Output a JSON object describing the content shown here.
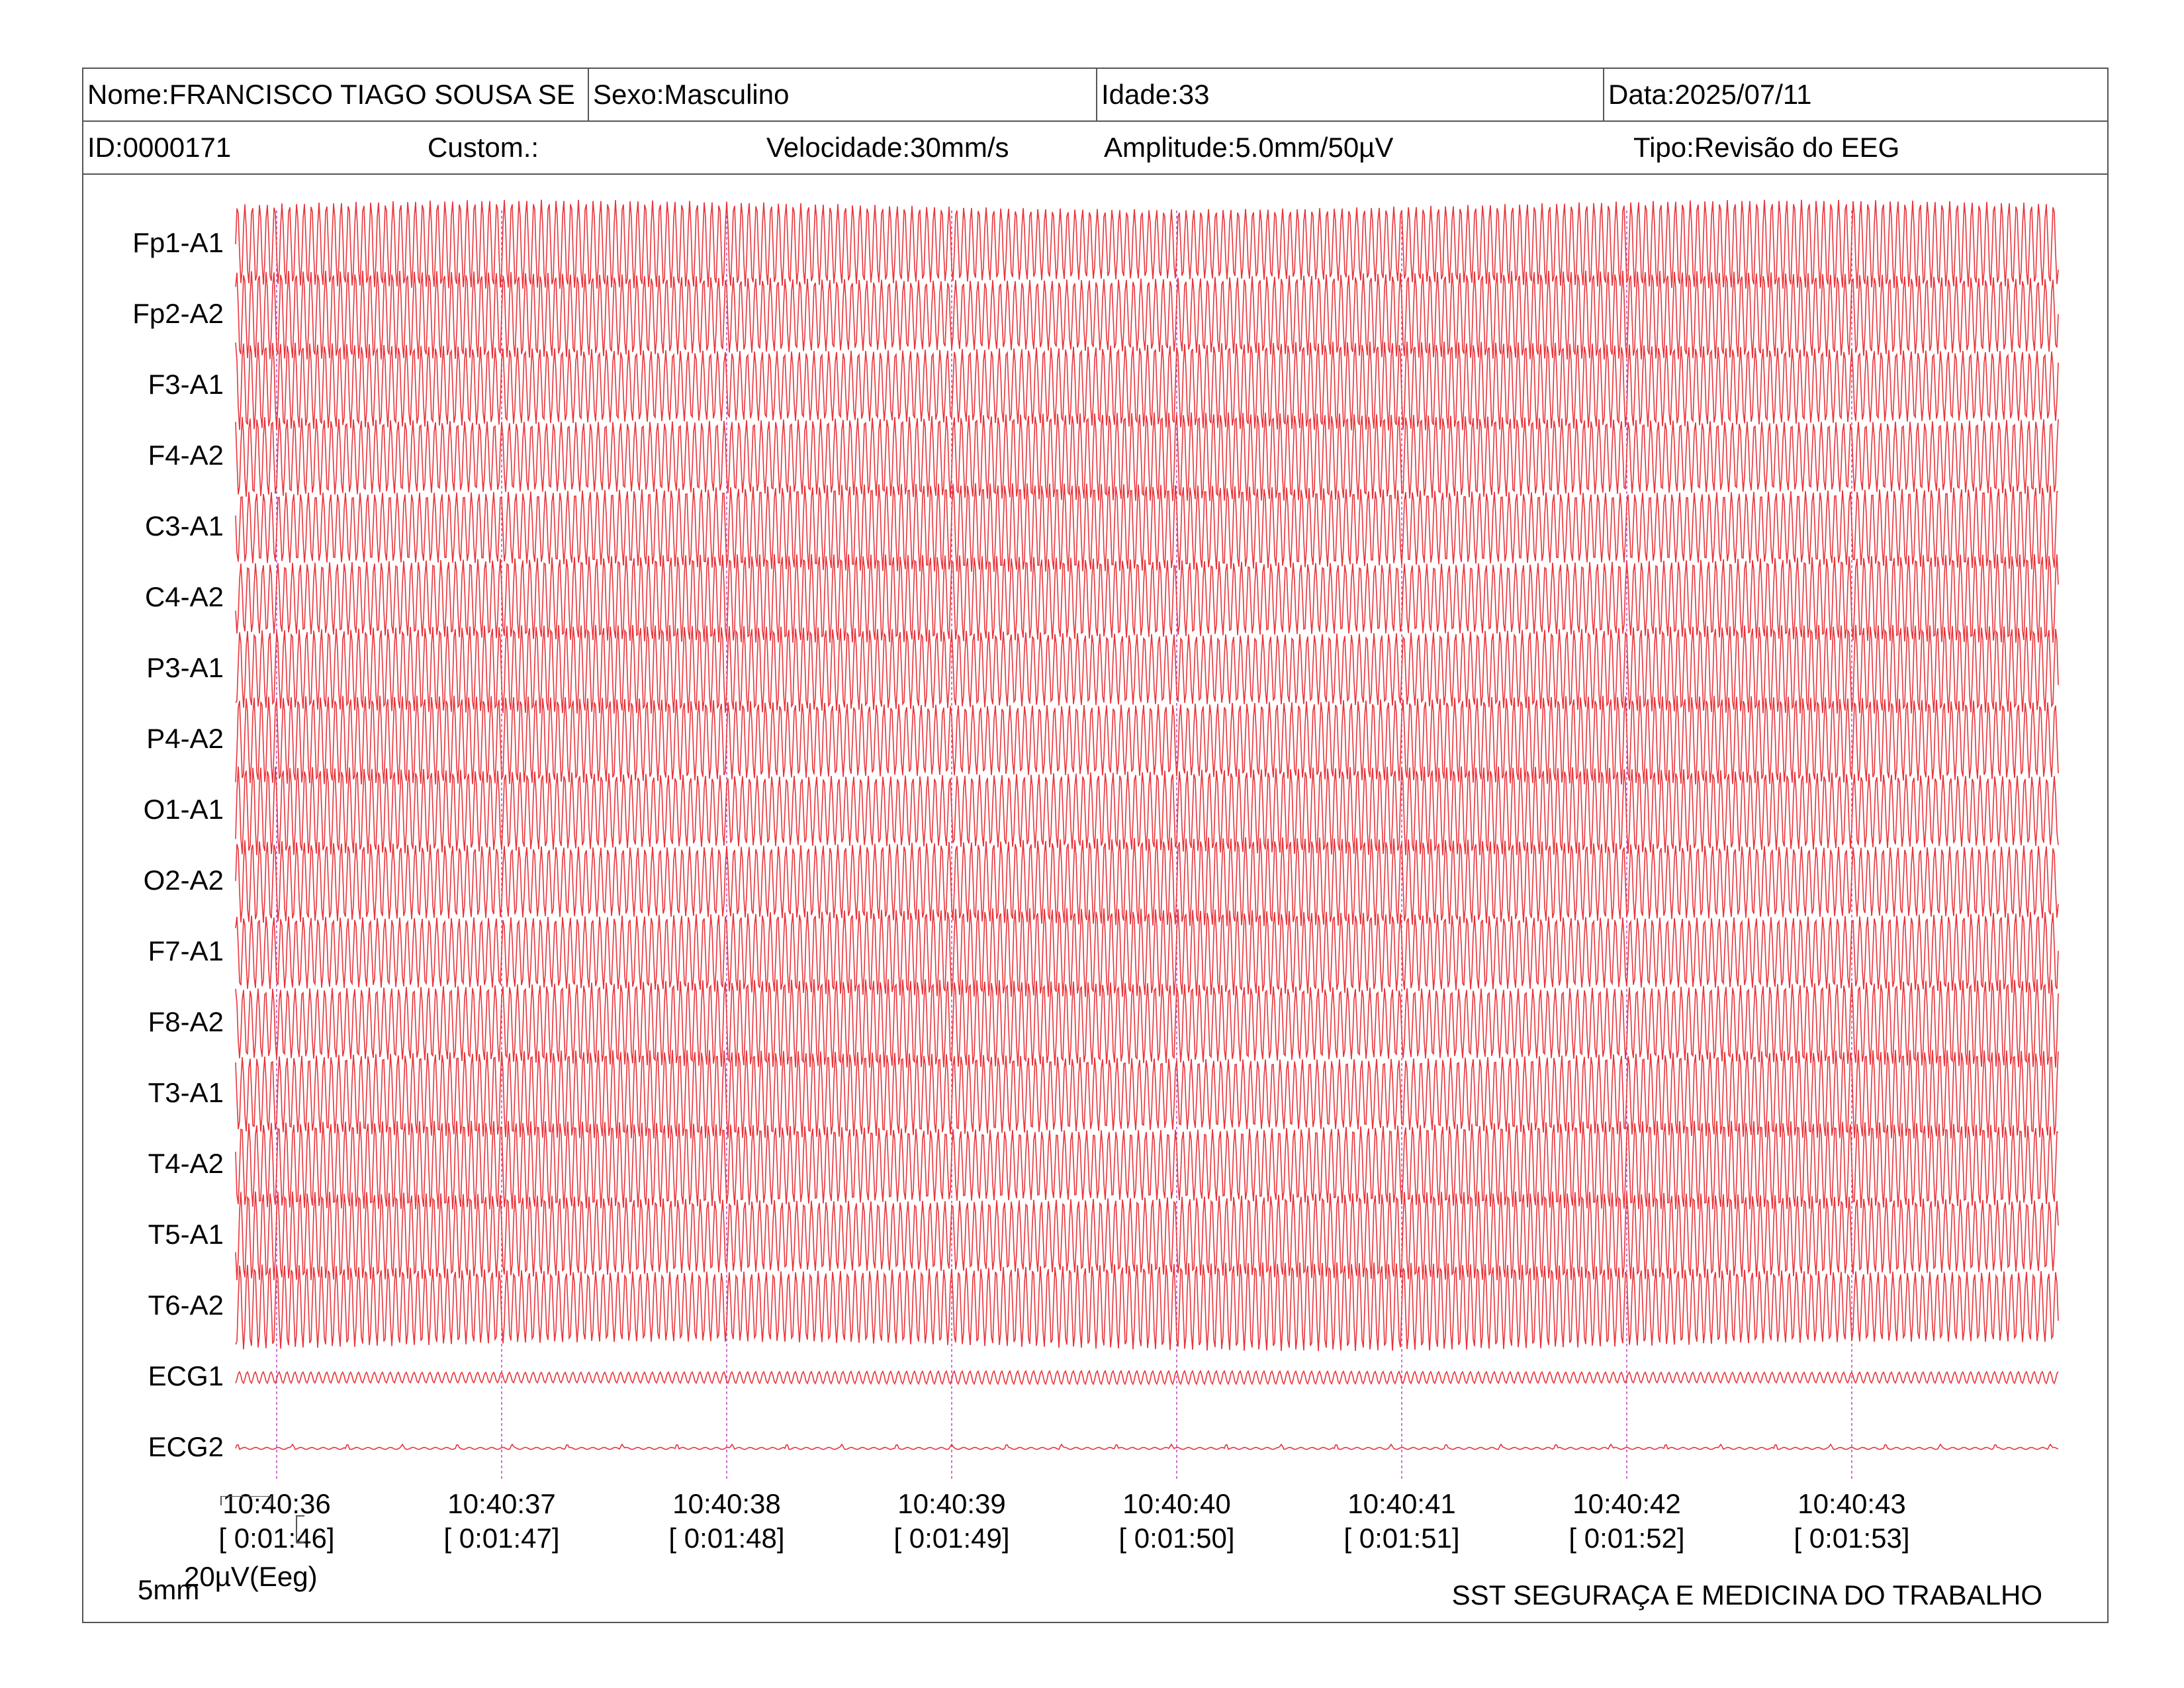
{
  "header": {
    "name": "Nome:FRANCISCO TIAGO SOUSA SE",
    "sex": "Sexo:Masculino",
    "age": "Idade:33",
    "date": "Data:2025/07/11",
    "id": "ID:0000171",
    "custom": "Custom.:",
    "speed": "Velocidade:30mm/s",
    "amplitude": "Amplitude:5.0mm/50µV",
    "type": "Tipo:Revisão do EEG"
  },
  "channels": [
    "Fp1-A1",
    "Fp2-A2",
    "F3-A1",
    "F4-A2",
    "C3-A1",
    "C4-A2",
    "P3-A1",
    "P4-A2",
    "O1-A1",
    "O2-A2",
    "F7-A1",
    "F8-A2",
    "T3-A1",
    "T4-A2",
    "T5-A1",
    "T6-A2",
    "ECG1",
    "ECG2"
  ],
  "time_marks": [
    {
      "clock": "10:40:36",
      "elapsed": "[ 0:01:46]"
    },
    {
      "clock": "10:40:37",
      "elapsed": "[ 0:01:47]"
    },
    {
      "clock": "10:40:38",
      "elapsed": "[ 0:01:48]"
    },
    {
      "clock": "10:40:39",
      "elapsed": "[ 0:01:49]"
    },
    {
      "clock": "10:40:40",
      "elapsed": "[ 0:01:50]"
    },
    {
      "clock": "10:40:41",
      "elapsed": "[ 0:01:51]"
    },
    {
      "clock": "10:40:42",
      "elapsed": "[ 0:01:52]"
    },
    {
      "clock": "10:40:43",
      "elapsed": "[ 0:01:53]"
    }
  ],
  "scale": {
    "time": "5mm",
    "amplitude": "20µV(Eeg)"
  },
  "footer": "SST SEGURAÇA E MEDICINA DO TRABALHO",
  "colors": {
    "trace": "#e8343a",
    "marker": "#c040c0",
    "border": "#555555"
  }
}
